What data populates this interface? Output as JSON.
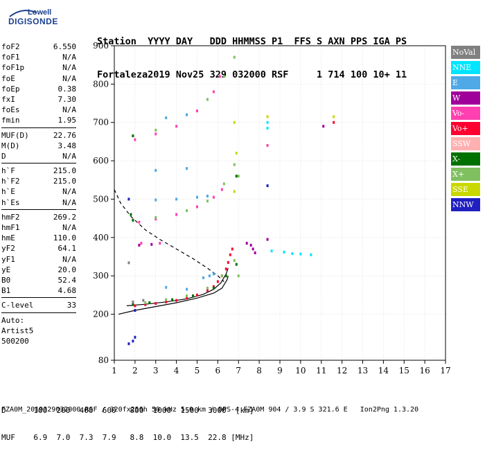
{
  "logo": {
    "line1": "Lowell",
    "line2": "DIGISONDE"
  },
  "header": {
    "labels": [
      "Station",
      "YYYY",
      "DAY",
      "DDD",
      "HHMMSS",
      "P1",
      "FFS",
      "S",
      "AXN",
      "PPS",
      "IGA",
      "PS"
    ],
    "values": [
      "Fortaleza",
      "2019",
      "Nov25",
      "329",
      "032000",
      "RSF",
      "",
      "1",
      "714",
      "100",
      "10+",
      "11"
    ]
  },
  "params": [
    {
      "k": "foF2",
      "v": "6.550"
    },
    {
      "k": "foF1",
      "v": "N/A"
    },
    {
      "k": "foF1p",
      "v": "N/A"
    },
    {
      "k": "foE",
      "v": "N/A"
    },
    {
      "k": "foEp",
      "v": "0.38"
    },
    {
      "k": "fxI",
      "v": "7.30"
    },
    {
      "k": "foEs",
      "v": "N/A"
    },
    {
      "k": "fmin",
      "v": "1.95"
    },
    {
      "sep": true
    },
    {
      "k": "MUF(D)",
      "v": "22.76"
    },
    {
      "k": "M(D)",
      "v": "3.48"
    },
    {
      "k": "D",
      "v": "N/A"
    },
    {
      "sep": true
    },
    {
      "k": "h`F",
      "v": "215.0"
    },
    {
      "k": "h`F2",
      "v": "215.0"
    },
    {
      "k": "h`E",
      "v": "N/A"
    },
    {
      "k": "h`Es",
      "v": "N/A"
    },
    {
      "sep": true
    },
    {
      "k": "hmF2",
      "v": "269.2"
    },
    {
      "k": "hmF1",
      "v": "N/A"
    },
    {
      "k": "hmE",
      "v": "110.0"
    },
    {
      "k": "yF2",
      "v": "64.1"
    },
    {
      "k": "yF1",
      "v": "N/A"
    },
    {
      "k": "yE",
      "v": "20.0"
    },
    {
      "k": "B0",
      "v": "52.4"
    },
    {
      "k": "B1",
      "v": "4.68"
    },
    {
      "sep": true
    },
    {
      "k": "C-level",
      "v": "33"
    },
    {
      "sep": true
    },
    {
      "k": "Auto:",
      "v": ""
    },
    {
      "k": "Artist5",
      "v": ""
    },
    {
      "k": "500200",
      "v": ""
    }
  ],
  "legend": [
    {
      "label": "NoVal",
      "color": "#808080"
    },
    {
      "label": "NNE",
      "color": "#00e5ff"
    },
    {
      "label": "E",
      "color": "#4ea9e6"
    },
    {
      "label": "W",
      "color": "#a0009a"
    },
    {
      "label": "Vo-",
      "color": "#ff40b0"
    },
    {
      "label": "Vo+",
      "color": "#ff0030"
    },
    {
      "label": "SSW",
      "color": "#ffb0b0"
    },
    {
      "label": "X-",
      "color": "#007000"
    },
    {
      "label": "X+",
      "color": "#80c060"
    },
    {
      "label": "SSE",
      "color": "#c8d800"
    },
    {
      "label": "NNW",
      "color": "#2020c0"
    }
  ],
  "chart_data": {
    "type": "scatter",
    "xlim": [
      1,
      17
    ],
    "ylim": [
      80,
      900
    ],
    "xticks": [
      1,
      2,
      3,
      4,
      5,
      6,
      7,
      8,
      9,
      10,
      11,
      12,
      13,
      14,
      15,
      16,
      17
    ],
    "yticks": [
      80,
      200,
      300,
      400,
      500,
      600,
      700,
      800,
      900
    ],
    "series": [
      {
        "name": "Vo+",
        "color": "#ff0030",
        "points": [
          [
            2.0,
            222
          ],
          [
            2.5,
            225
          ],
          [
            3.0,
            228
          ],
          [
            3.5,
            232
          ],
          [
            4.0,
            236
          ],
          [
            4.5,
            242
          ],
          [
            5.0,
            250
          ],
          [
            5.5,
            262
          ],
          [
            5.8,
            272
          ],
          [
            6.0,
            285
          ],
          [
            6.2,
            300
          ],
          [
            6.4,
            318
          ],
          [
            6.5,
            335
          ],
          [
            6.6,
            355
          ],
          [
            6.7,
            370
          ],
          [
            11.6,
            700
          ]
        ]
      },
      {
        "name": "Vo-",
        "color": "#ff40b0",
        "points": [
          [
            2.2,
            440
          ],
          [
            3.0,
            448
          ],
          [
            4.0,
            460
          ],
          [
            5.0,
            480
          ],
          [
            5.8,
            505
          ],
          [
            6.2,
            525
          ],
          [
            2.0,
            655
          ],
          [
            3.0,
            670
          ],
          [
            4.0,
            690
          ],
          [
            5.0,
            730
          ],
          [
            5.8,
            780
          ],
          [
            6.1,
            820
          ],
          [
            8.4,
            640
          ],
          [
            2.3,
            385
          ],
          [
            3.2,
            385
          ]
        ]
      },
      {
        "name": "X+",
        "color": "#80c060",
        "points": [
          [
            2.5,
            230
          ],
          [
            3.5,
            238
          ],
          [
            4.5,
            248
          ],
          [
            5.5,
            268
          ],
          [
            6.2,
            300
          ],
          [
            6.8,
            340
          ],
          [
            7.0,
            300
          ],
          [
            3.0,
            452
          ],
          [
            4.5,
            470
          ],
          [
            5.5,
            495
          ],
          [
            6.3,
            540
          ],
          [
            6.8,
            590
          ],
          [
            7.0,
            560
          ],
          [
            3.0,
            680
          ],
          [
            4.5,
            720
          ],
          [
            5.5,
            760
          ],
          [
            6.3,
            820
          ],
          [
            6.8,
            870
          ]
        ]
      },
      {
        "name": "X-",
        "color": "#007000",
        "points": [
          [
            1.9,
            225
          ],
          [
            2.7,
            230
          ],
          [
            3.8,
            238
          ],
          [
            4.8,
            248
          ],
          [
            5.8,
            268
          ],
          [
            6.4,
            300
          ],
          [
            1.9,
            445
          ],
          [
            1.9,
            665
          ],
          [
            1.8,
            460
          ],
          [
            6.9,
            560
          ],
          [
            6.9,
            330
          ]
        ]
      },
      {
        "name": "E",
        "color": "#4ea9e6",
        "points": [
          [
            3.0,
            498
          ],
          [
            4.0,
            500
          ],
          [
            5.0,
            505
          ],
          [
            5.5,
            508
          ],
          [
            3.5,
            712
          ],
          [
            4.5,
            720
          ],
          [
            3.0,
            575
          ],
          [
            4.5,
            580
          ],
          [
            5.3,
            295
          ],
          [
            5.6,
            300
          ],
          [
            5.8,
            305
          ],
          [
            3.5,
            270
          ],
          [
            4.5,
            265
          ]
        ]
      },
      {
        "name": "NNE",
        "color": "#00e5ff",
        "points": [
          [
            8.6,
            365
          ],
          [
            9.2,
            362
          ],
          [
            9.6,
            358
          ],
          [
            10.0,
            357
          ],
          [
            10.5,
            355
          ],
          [
            8.4,
            700
          ],
          [
            8.4,
            685
          ]
        ]
      },
      {
        "name": "W",
        "color": "#a0009a",
        "points": [
          [
            7.4,
            385
          ],
          [
            7.6,
            380
          ],
          [
            7.7,
            370
          ],
          [
            7.8,
            360
          ],
          [
            8.4,
            395
          ],
          [
            2.2,
            380
          ],
          [
            2.8,
            382
          ],
          [
            11.1,
            690
          ]
        ]
      },
      {
        "name": "SSE",
        "color": "#c8d800",
        "points": [
          [
            6.8,
            520
          ],
          [
            6.9,
            620
          ],
          [
            6.8,
            700
          ],
          [
            11.6,
            715
          ],
          [
            8.4,
            715
          ]
        ]
      },
      {
        "name": "NNW",
        "color": "#2020c0",
        "points": [
          [
            1.9,
            130
          ],
          [
            2.0,
            140
          ],
          [
            1.7,
            123
          ],
          [
            2.0,
            210
          ],
          [
            8.4,
            535
          ],
          [
            1.7,
            500
          ]
        ]
      },
      {
        "name": "NoVal",
        "color": "#808080",
        "points": [
          [
            1.9,
            232
          ],
          [
            2.4,
            236
          ],
          [
            1.7,
            334
          ]
        ]
      }
    ],
    "curves": [
      {
        "name": "profile",
        "color": "#000000",
        "dashed": false,
        "points": [
          [
            1.2,
            200
          ],
          [
            2.0,
            210
          ],
          [
            3.0,
            220
          ],
          [
            4.0,
            230
          ],
          [
            5.0,
            242
          ],
          [
            5.8,
            255
          ],
          [
            6.2,
            268
          ],
          [
            6.45,
            290
          ],
          [
            6.5,
            300
          ]
        ]
      },
      {
        "name": "trace",
        "color": "#000000",
        "dashed": false,
        "points": [
          [
            1.6,
            222
          ],
          [
            2.5,
            226
          ],
          [
            3.5,
            232
          ],
          [
            4.5,
            240
          ],
          [
            5.3,
            252
          ],
          [
            5.8,
            265
          ],
          [
            6.15,
            282
          ],
          [
            6.4,
            305
          ],
          [
            6.5,
            320
          ]
        ]
      },
      {
        "name": "fit",
        "color": "#000000",
        "dashed": true,
        "points": [
          [
            1.0,
            525
          ],
          [
            1.3,
            490
          ],
          [
            1.8,
            455
          ],
          [
            2.5,
            420
          ],
          [
            3.2,
            395
          ],
          [
            4.0,
            370
          ],
          [
            4.8,
            345
          ],
          [
            5.5,
            320
          ],
          [
            6.0,
            300
          ],
          [
            6.3,
            285
          ]
        ]
      }
    ]
  },
  "bottom": {
    "row1_label": "D",
    "row1": [
      "100",
      "200",
      "400",
      "600",
      "800",
      "1000",
      "1500",
      "3000",
      "[km]"
    ],
    "row2_label": "MUF",
    "row2": [
      "6.9",
      "7.0",
      "7.3",
      "7.9",
      "8.8",
      "10.0",
      "13.5",
      "22.8",
      "[MHz]"
    ]
  },
  "footer": "FZA0M_2019329032000.RSF / 320fx256h 50 kHz 5.0 km / DPS-4 FZA0M 904 / 3.9 S 321.6 E   Ion2Png 1.3.20"
}
